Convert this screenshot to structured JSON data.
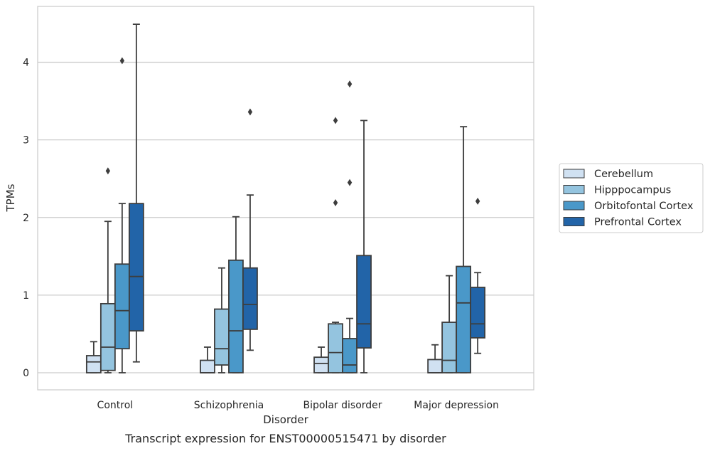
{
  "caption": "Transcript expression for ENST00000515471 by disorder",
  "chart_data": {
    "type": "boxplot",
    "title": "",
    "xlabel": "Disorder",
    "ylabel": "TPMs",
    "ylim": [
      -0.22,
      4.72
    ],
    "yticks": [
      0,
      1,
      2,
      3,
      4
    ],
    "grid": "horizontal",
    "legend_position": "right",
    "categories": [
      "Control",
      "Schizophrenia",
      "Bipolar disorder",
      "Major depression"
    ],
    "series": [
      {
        "name": "Cerebellum",
        "color": "#d0e1f2",
        "boxes": [
          {
            "whislo": 0,
            "q1": 0,
            "med": 0.14,
            "q3": 0.22,
            "whishi": 0.4,
            "fliers": []
          },
          {
            "whislo": 0,
            "q1": 0,
            "med": 0,
            "q3": 0.16,
            "whishi": 0.33,
            "fliers": []
          },
          {
            "whislo": 0,
            "q1": 0,
            "med": 0.12,
            "q3": 0.2,
            "whishi": 0.33,
            "fliers": []
          },
          {
            "whislo": 0,
            "q1": 0,
            "med": 0,
            "q3": 0.17,
            "whishi": 0.36,
            "fliers": []
          }
        ]
      },
      {
        "name": "Hipppocampus",
        "color": "#94c4df",
        "boxes": [
          {
            "whislo": 0,
            "q1": 0.03,
            "med": 0.33,
            "q3": 0.89,
            "whishi": 1.95,
            "fliers": [
              2.6
            ]
          },
          {
            "whislo": 0,
            "q1": 0.1,
            "med": 0.31,
            "q3": 0.82,
            "whishi": 1.35,
            "fliers": []
          },
          {
            "whislo": 0,
            "q1": 0,
            "med": 0.26,
            "q3": 0.63,
            "whishi": 0.65,
            "fliers": [
              2.19,
              3.25
            ]
          },
          {
            "whislo": 0,
            "q1": 0,
            "med": 0.16,
            "q3": 0.65,
            "whishi": 1.25,
            "fliers": []
          }
        ]
      },
      {
        "name": "Orbitofontal Cortex",
        "color": "#4a98c9",
        "boxes": [
          {
            "whislo": 0,
            "q1": 0.31,
            "med": 0.8,
            "q3": 1.4,
            "whishi": 2.18,
            "fliers": [
              4.02
            ]
          },
          {
            "whislo": 0,
            "q1": 0,
            "med": 0.54,
            "q3": 1.45,
            "whishi": 2.01,
            "fliers": []
          },
          {
            "whislo": 0,
            "q1": 0,
            "med": 0.1,
            "q3": 0.44,
            "whishi": 0.7,
            "fliers": [
              2.45,
              3.72
            ]
          },
          {
            "whislo": 0,
            "q1": 0,
            "med": 0.9,
            "q3": 1.37,
            "whishi": 3.17,
            "fliers": []
          }
        ]
      },
      {
        "name": "Prefrontal Cortex",
        "color": "#2264a8",
        "boxes": [
          {
            "whislo": 0.14,
            "q1": 0.54,
            "med": 1.24,
            "q3": 2.18,
            "whishi": 4.49,
            "fliers": []
          },
          {
            "whislo": 0.29,
            "q1": 0.56,
            "med": 0.88,
            "q3": 1.35,
            "whishi": 2.29,
            "fliers": [
              3.36
            ]
          },
          {
            "whislo": 0,
            "q1": 0.32,
            "med": 0.63,
            "q3": 1.51,
            "whishi": 3.25,
            "fliers": []
          },
          {
            "whislo": 0.25,
            "q1": 0.45,
            "med": 0.63,
            "q3": 1.1,
            "whishi": 1.29,
            "fliers": [
              2.21
            ]
          }
        ]
      }
    ]
  }
}
